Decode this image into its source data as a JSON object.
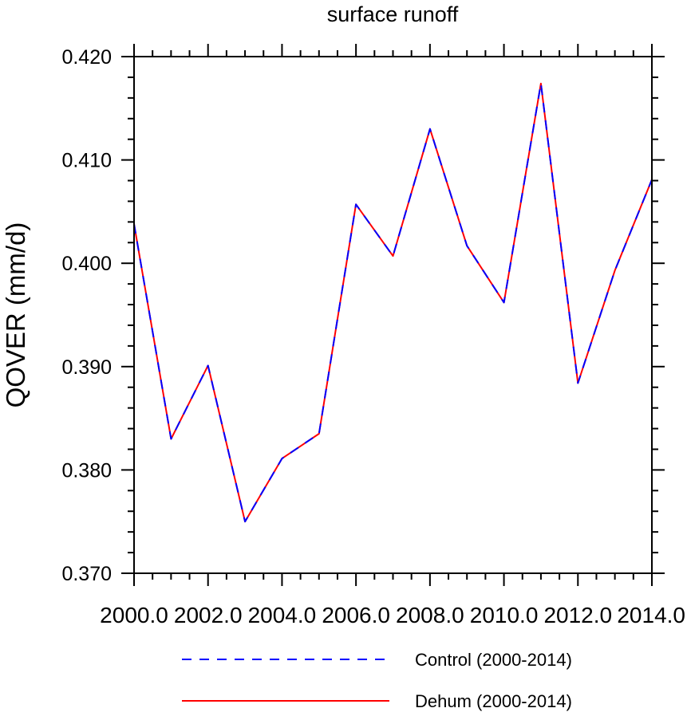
{
  "chart_data": {
    "type": "line",
    "title": "surface runoff",
    "ylabel": "QOVER  (mm/d)",
    "xlabel": "",
    "xlim": [
      2000,
      2014
    ],
    "ylim": [
      0.37,
      0.42
    ],
    "x_ticks": [
      2000,
      2002,
      2004,
      2006,
      2008,
      2010,
      2012,
      2014
    ],
    "x_tick_labels": [
      "2000.0",
      "2002.0",
      "2004.0",
      "2006.0",
      "2008.0",
      "2010.0",
      "2012.0",
      "2014.0"
    ],
    "y_ticks": [
      0.37,
      0.38,
      0.39,
      0.4,
      0.41,
      0.42
    ],
    "y_tick_labels": [
      "0.370",
      "0.380",
      "0.390",
      "0.400",
      "0.410",
      "0.420"
    ],
    "grid": false,
    "legend_position": "bottom",
    "x": [
      2000,
      2001,
      2002,
      2003,
      2004,
      2005,
      2006,
      2007,
      2008,
      2009,
      2010,
      2011,
      2012,
      2013,
      2014
    ],
    "series": [
      {
        "name": "Control (2000-2014)",
        "color": "#0000ff",
        "style": "dashed",
        "values": [
          0.4038,
          0.383,
          0.3901,
          0.375,
          0.3811,
          0.3835,
          0.4057,
          0.4007,
          0.413,
          0.4017,
          0.3962,
          0.4174,
          0.3884,
          0.3993,
          0.4081
        ]
      },
      {
        "name": "Dehum (2000-2014)",
        "color": "#ff0000",
        "style": "solid",
        "values": [
          0.4038,
          0.383,
          0.3901,
          0.375,
          0.3811,
          0.3835,
          0.4057,
          0.4007,
          0.413,
          0.4017,
          0.3962,
          0.4174,
          0.3884,
          0.3993,
          0.4081
        ]
      }
    ]
  }
}
